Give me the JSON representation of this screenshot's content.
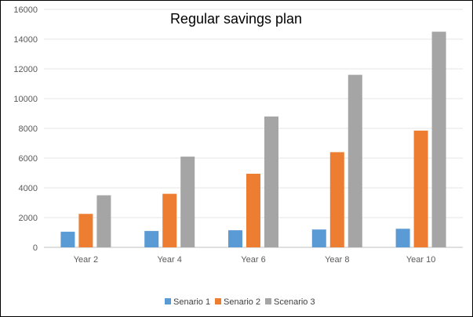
{
  "chart_data": {
    "type": "bar",
    "title": "Regular savings plan",
    "xlabel": "",
    "ylabel": "",
    "categories": [
      "Year 2",
      "Year 4",
      "Year 6",
      "Year 8",
      "Year 10"
    ],
    "series": [
      {
        "name": "Senario 1",
        "color": "#5b9bd5",
        "values": [
          1050,
          1100,
          1150,
          1200,
          1250
        ]
      },
      {
        "name": "Senario 2",
        "color": "#ed7d31",
        "values": [
          2250,
          3600,
          4950,
          6400,
          7850
        ]
      },
      {
        "name": "Scenario 3",
        "color": "#a5a5a5",
        "values": [
          3500,
          6100,
          8800,
          11600,
          14500
        ]
      }
    ],
    "ylim": [
      0,
      16000
    ],
    "yticks": [
      0,
      2000,
      4000,
      6000,
      8000,
      10000,
      12000,
      14000,
      16000
    ],
    "grid": true,
    "legend_position": "bottom"
  }
}
